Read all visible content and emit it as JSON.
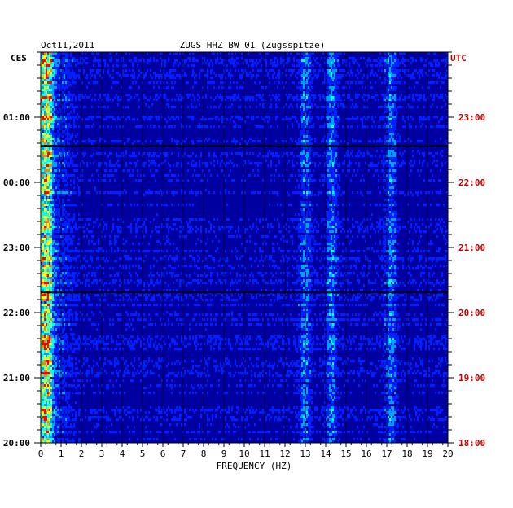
{
  "chart_data": {
    "type": "heatmap",
    "date": "Oct11,2011",
    "title": "ZUGS HHZ BW 01 (Zugsspitze)",
    "left_timezone": "CES",
    "right_timezone": "UTC",
    "xlabel": "FREQUENCY (HZ)",
    "x_range": [
      0,
      20
    ],
    "x_ticks": [
      "0",
      "1",
      "2",
      "3",
      "4",
      "5",
      "6",
      "7",
      "8",
      "9",
      "10",
      "11",
      "12",
      "13",
      "14",
      "15",
      "16",
      "17",
      "18",
      "19",
      "20"
    ],
    "left_time_ticks": [
      "01:00",
      "00:00",
      "23:00",
      "22:00",
      "21:00",
      "20:00"
    ],
    "right_time_ticks": [
      "23:00",
      "22:00",
      "21:00",
      "20:00",
      "19:00",
      "18:00"
    ],
    "grid": true,
    "colormap": [
      "#0000a0",
      "#0020ff",
      "#00a0ff",
      "#00ffff",
      "#80ff80",
      "#ffff00",
      "#ff8000",
      "#ff0000"
    ],
    "label_colors": {
      "left": "#000000",
      "right": "#cc0000"
    },
    "strong_frequency_bands_hz": [
      0.2,
      0.4,
      13.0,
      14.3,
      17.2
    ]
  }
}
